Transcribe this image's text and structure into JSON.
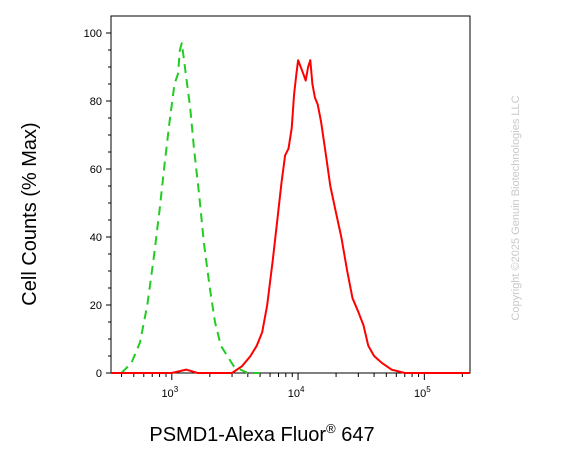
{
  "chart_data": {
    "type": "line",
    "xlabel_main": "PSMD1-Alexa Fluor",
    "xlabel_sup": "®",
    "xlabel_tail": " 647",
    "ylabel": "Cell Counts (% Max)",
    "xscale": "log",
    "xlim": [
      330,
      230000
    ],
    "ylim": [
      0,
      105
    ],
    "y_ticks": [
      0,
      20,
      40,
      60,
      80,
      100
    ],
    "x_major_ticks": [
      {
        "value": 1000,
        "base": "10",
        "exp": "3"
      },
      {
        "value": 10000,
        "base": "10",
        "exp": "4"
      },
      {
        "value": 100000,
        "base": "10",
        "exp": "5"
      }
    ],
    "grid": false,
    "legend": "none",
    "series": [
      {
        "color": "#22cc22",
        "style": "dashed",
        "x": [
          400,
          480,
          560,
          640,
          720,
          800,
          880,
          960,
          1050,
          1120,
          1160,
          1200,
          1240,
          1300,
          1400,
          1500,
          1650,
          1800,
          2000,
          2200,
          2450,
          2750,
          3100,
          3500,
          4000,
          5000
        ],
        "y": [
          0,
          3,
          9,
          20,
          34,
          48,
          62,
          74,
          85,
          88,
          95,
          97,
          93,
          87,
          78,
          66,
          52,
          38,
          25,
          15,
          8,
          5,
          2,
          1,
          0,
          0
        ]
      },
      {
        "color": "#ff0000",
        "style": "solid",
        "x": [
          330,
          1000,
          1300,
          1600,
          2200,
          3000,
          3600,
          4200,
          4700,
          5200,
          5700,
          6300,
          6900,
          7400,
          7900,
          8400,
          8900,
          9300,
          9700,
          10000,
          10500,
          11000,
          11500,
          12000,
          12500,
          13000,
          13600,
          14300,
          15200,
          16500,
          18000,
          20000,
          22000,
          24500,
          27000,
          30000,
          33000,
          36000,
          40000,
          46000,
          55000,
          70000,
          90000,
          230000
        ],
        "y": [
          0,
          0,
          1,
          0,
          0,
          0,
          2,
          5,
          8,
          12,
          20,
          33,
          46,
          56,
          64,
          66,
          72,
          82,
          88,
          92,
          90,
          88,
          86,
          90,
          92,
          85,
          81,
          79,
          74,
          65,
          55,
          47,
          40,
          30,
          22,
          18,
          14,
          8,
          5,
          3,
          1,
          0,
          0,
          0
        ]
      }
    ]
  },
  "watermark": {
    "copyright": "Copyright ©2025 Genuin Biotechnologies LLC"
  }
}
